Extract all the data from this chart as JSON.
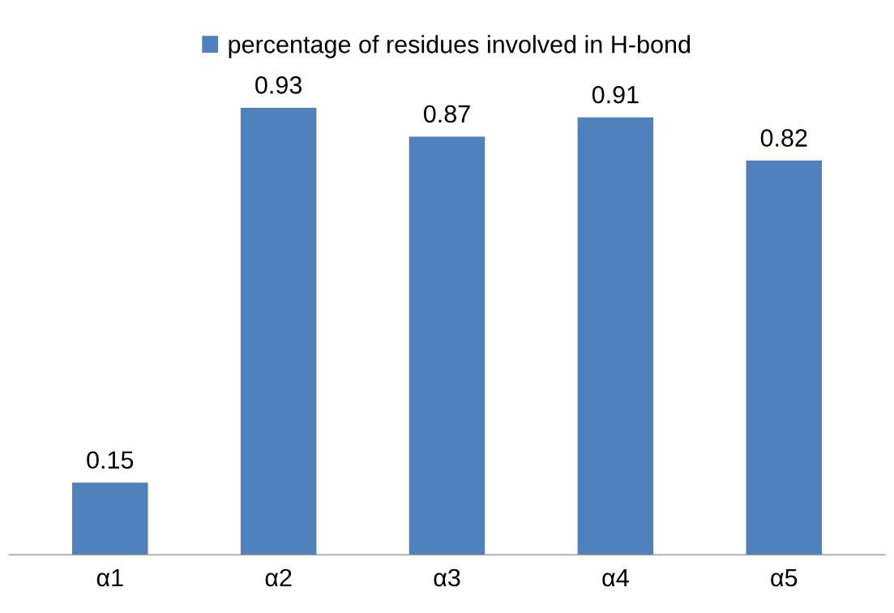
{
  "chart_data": {
    "type": "bar",
    "categories": [
      "α1",
      "α2",
      "α3",
      "α4",
      "α5"
    ],
    "series": [
      {
        "name": "percentage of residues involved in H-bond",
        "color": "#4f81bd",
        "values": [
          0.15,
          0.93,
          0.87,
          0.91,
          0.82
        ]
      }
    ],
    "data_labels": true,
    "legend": "top",
    "grid": false,
    "tick_labels": "x"
  }
}
